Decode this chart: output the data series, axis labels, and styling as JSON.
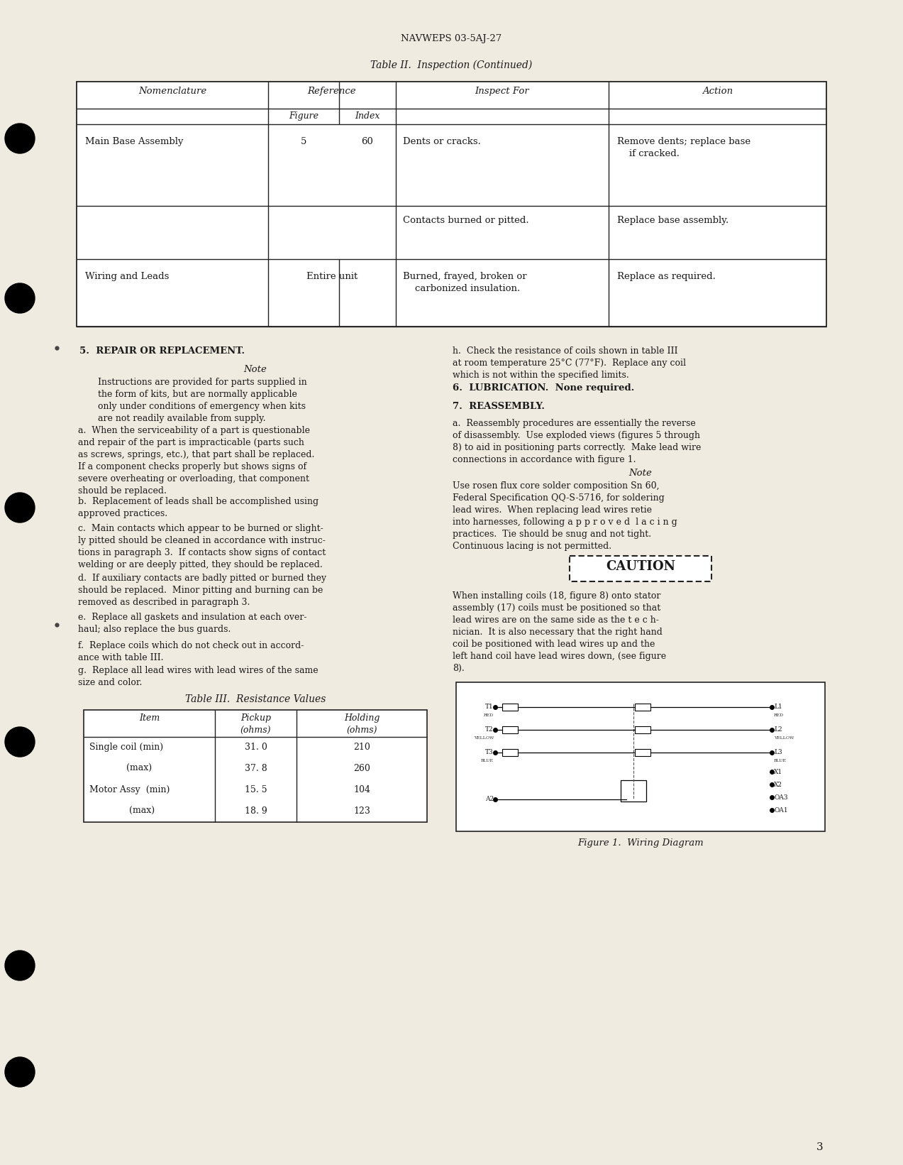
{
  "page_header": "NAVWEPS 03-5AJ-27",
  "table2_title": "Table II.  Inspection (Continued)",
  "section5_title": "5.  REPAIR OR REPLACEMENT.",
  "section5_note_title": "Note",
  "section5_note": "Instructions are provided for parts supplied in\nthe form of kits, but are normally applicable\nonly under conditions of emergency when kits\nare not readily available from supply.",
  "section5_a": "a.  When the serviceability of a part is questionable\nand repair of the part is impracticable (parts such\nas screws, springs, etc.), that part shall be replaced.\nIf a component checks properly but shows signs of\nsevere overheating or overloading, that component\nshould be replaced.",
  "section5_b": "b.  Replacement of leads shall be accomplished using\napproved practices.",
  "section5_c": "c.  Main contacts which appear to be burned or slight-\nly pitted should be cleaned in accordance with instruc-\ntions in paragraph 3.  If contacts show signs of contact\nwelding or are deeply pitted, they should be replaced.",
  "section5_d": "d.  If auxiliary contacts are badly pitted or burned they\nshould be replaced.  Minor pitting and burning can be\nremoved as described in paragraph 3.",
  "section5_e": "e.  Replace all gaskets and insulation at each over-\nhaul; also replace the bus guards.",
  "section5_f": "f.  Replace coils which do not check out in accord-\nance with table III.",
  "section5_g": "g.  Replace all lead wires with lead wires of the same\nsize and color.",
  "table3_title": "Table III.  Resistance Values",
  "table3_rows": [
    [
      "Single coil (min)",
      "31. 0",
      "210"
    ],
    [
      "             (max)",
      "37. 8",
      "260"
    ],
    [
      "Motor Assy  (min)",
      "15. 5",
      "104"
    ],
    [
      "              (max)",
      "18. 9",
      "123"
    ]
  ],
  "section5_h": "h.  Check the resistance of coils shown in table III\nat room temperature 25°C (77°F).  Replace any coil\nwhich is not within the specified limits.",
  "section6_title": "6.  LUBRICATION.  None required.",
  "section7_title": "7.  REASSEMBLY.",
  "section7_a": "a.  Reassembly procedures are essentially the reverse\nof disassembly.  Use exploded views (figures 5 through\n8) to aid in positioning parts correctly.  Make lead wire\nconnections in accordance with figure 1.",
  "section7_note_title": "Note",
  "section7_note": "Use rosen flux core solder composition Sn 60,\nFederal Specification QQ-S-5716, for soldering\nlead wires.  When replacing lead wires retie\ninto harnesses, following a p p r o v e d  l a c i n g\npractices.  Tie should be snug and not tight.\nContinuous lacing is not permitted.",
  "caution_text": "CAUTION",
  "caution_body": "When installing coils (18, figure 8) onto stator\nassembly (17) coils must be positioned so that\nlead wires are on the same side as the t e c h-\nnician.  It is also necessary that the right hand\ncoil be positioned with lead wires up and the\nleft hand coil have lead wires down, (see figure\n8).",
  "figure1_caption": "Figure 1.  Wiring Diagram",
  "page_number": "3",
  "bg_color": "#f0ebe0",
  "text_color": "#1a1a1a",
  "table_line_color": "#222222"
}
